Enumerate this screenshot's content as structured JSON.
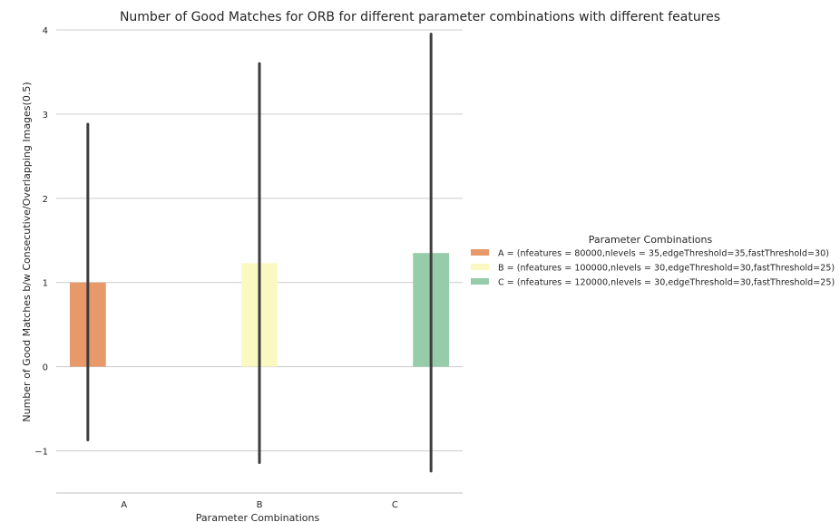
{
  "chart_data": {
    "type": "bar",
    "title": "Number of Good Matches for ORB for different parameter combinations with different features",
    "xlabel": "Parameter Combinations",
    "ylabel": "Number of Good Matches b/w Consecutive/Overlapping Images(0.5)",
    "categories": [
      "A",
      "B",
      "C"
    ],
    "ylim": [
      -1.5,
      4
    ],
    "yticks": [
      -1,
      0,
      1,
      2,
      3,
      4
    ],
    "ytick_labels": [
      "−1",
      "0",
      "1",
      "2",
      "3",
      "4"
    ],
    "grid": true,
    "legend_position": "center-right",
    "legend_title": "Parameter Combinations",
    "series": [
      {
        "name": "A = (nfeatures = 80000,nlevels = 35,edgeThreshold=35,fastThreshold=30)",
        "category": "A",
        "value": 1.0,
        "err_low": -0.87,
        "err_high": 2.88,
        "color": "#e8996a"
      },
      {
        "name": "B = (nfeatures = 100000,nlevels = 30,edgeThreshold=30,fastThreshold=25)",
        "category": "B",
        "value": 1.23,
        "err_low": -1.14,
        "err_high": 3.6,
        "color": "#fbf9c2"
      },
      {
        "name": "C = (nfeatures = 120000,nlevels = 30,edgeThreshold=30,fastThreshold=25)",
        "category": "C",
        "value": 1.35,
        "err_low": -1.24,
        "err_high": 3.95,
        "color": "#96cca9"
      }
    ]
  }
}
